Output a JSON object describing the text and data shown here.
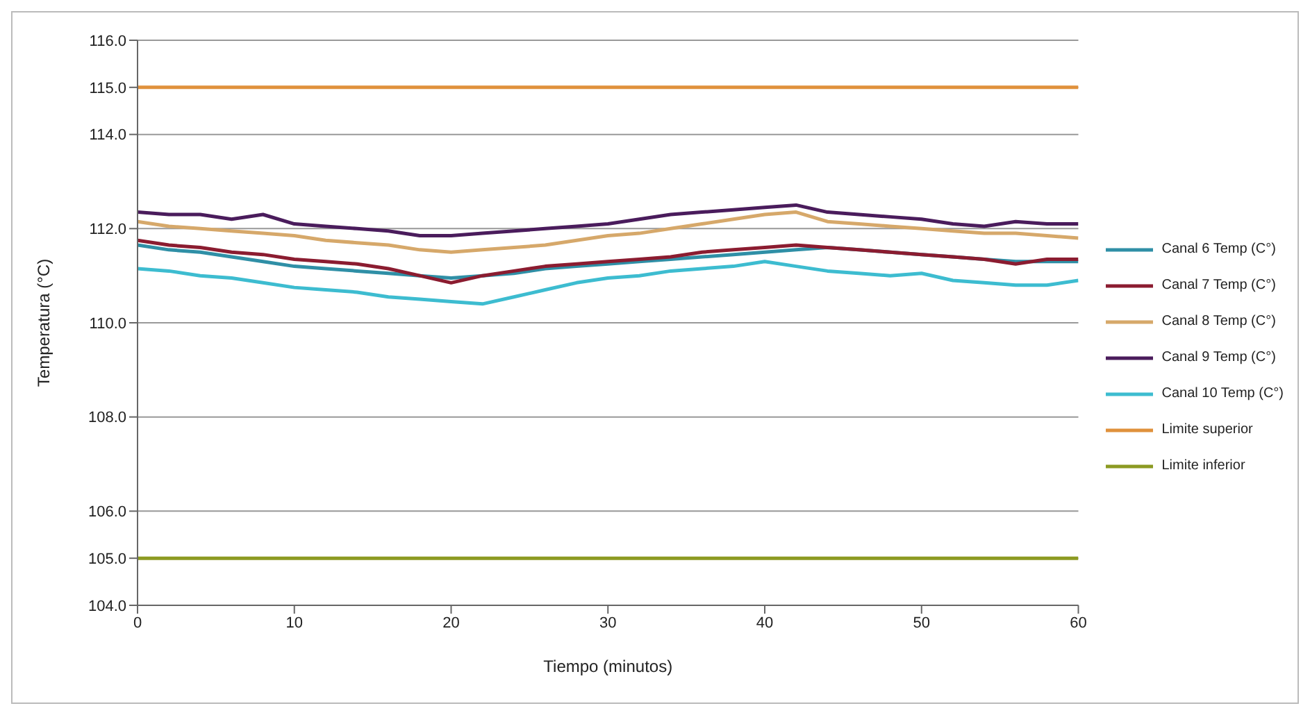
{
  "chart_data": {
    "type": "line",
    "xlabel": "Tiempo (minutos)",
    "ylabel": "Temperatura (°C)",
    "x": [
      0,
      2,
      4,
      6,
      8,
      10,
      12,
      14,
      16,
      18,
      20,
      22,
      24,
      26,
      28,
      30,
      32,
      34,
      36,
      38,
      40,
      42,
      44,
      46,
      48,
      50,
      52,
      54,
      56,
      58,
      60
    ],
    "series": [
      {
        "name": "Canal 6 Temp (C°)",
        "color": "#2f8fa6",
        "values": [
          111.65,
          111.55,
          111.5,
          111.4,
          111.3,
          111.2,
          111.15,
          111.1,
          111.05,
          111.0,
          110.95,
          111.0,
          111.05,
          111.15,
          111.2,
          111.25,
          111.3,
          111.35,
          111.4,
          111.45,
          111.5,
          111.55,
          111.6,
          111.55,
          111.5,
          111.45,
          111.4,
          111.35,
          111.3,
          111.3,
          111.3
        ]
      },
      {
        "name": "Canal 7 Temp (C°)",
        "color": "#8b1c30",
        "values": [
          111.75,
          111.65,
          111.6,
          111.5,
          111.45,
          111.35,
          111.3,
          111.25,
          111.15,
          111.0,
          110.85,
          111.0,
          111.1,
          111.2,
          111.25,
          111.3,
          111.35,
          111.4,
          111.5,
          111.55,
          111.6,
          111.65,
          111.6,
          111.55,
          111.5,
          111.45,
          111.4,
          111.35,
          111.25,
          111.35,
          111.35
        ]
      },
      {
        "name": "Canal 8 Temp (C°)",
        "color": "#d6a86a",
        "values": [
          112.15,
          112.05,
          112.0,
          111.95,
          111.9,
          111.85,
          111.75,
          111.7,
          111.65,
          111.55,
          111.5,
          111.55,
          111.6,
          111.65,
          111.75,
          111.85,
          111.9,
          112.0,
          112.1,
          112.2,
          112.3,
          112.35,
          112.15,
          112.1,
          112.05,
          112.0,
          111.95,
          111.9,
          111.9,
          111.85,
          111.8
        ]
      },
      {
        "name": "Canal 9 Temp (C°)",
        "color": "#4a1c5c",
        "values": [
          112.35,
          112.3,
          112.3,
          112.2,
          112.3,
          112.1,
          112.05,
          112.0,
          111.95,
          111.85,
          111.85,
          111.9,
          111.95,
          112.0,
          112.05,
          112.1,
          112.2,
          112.3,
          112.35,
          112.4,
          112.45,
          112.5,
          112.35,
          112.3,
          112.25,
          112.2,
          112.1,
          112.05,
          112.15,
          112.1,
          112.1
        ]
      },
      {
        "name": "Canal 10 Temp (C°)",
        "color": "#3dbcd0",
        "values": [
          111.15,
          111.1,
          111.0,
          110.95,
          110.85,
          110.75,
          110.7,
          110.65,
          110.55,
          110.5,
          110.45,
          110.4,
          110.55,
          110.7,
          110.85,
          110.95,
          111.0,
          111.1,
          111.15,
          111.2,
          111.3,
          111.2,
          111.1,
          111.05,
          111.0,
          111.05,
          110.9,
          110.85,
          110.8,
          110.8,
          110.9
        ]
      },
      {
        "name": "Limite superior",
        "color": "#e0913c",
        "values": [
          115,
          115,
          115,
          115,
          115,
          115,
          115,
          115,
          115,
          115,
          115,
          115,
          115,
          115,
          115,
          115,
          115,
          115,
          115,
          115,
          115,
          115,
          115,
          115,
          115,
          115,
          115,
          115,
          115,
          115,
          115
        ]
      },
      {
        "name": "Limite inferior",
        "color": "#8c9a22",
        "values": [
          105,
          105,
          105,
          105,
          105,
          105,
          105,
          105,
          105,
          105,
          105,
          105,
          105,
          105,
          105,
          105,
          105,
          105,
          105,
          105,
          105,
          105,
          105,
          105,
          105,
          105,
          105,
          105,
          105,
          105,
          105
        ]
      }
    ],
    "xlim": [
      0,
      60
    ],
    "xticks": [
      0,
      10,
      20,
      30,
      40,
      50,
      60
    ],
    "ylim": [
      104,
      116
    ],
    "yticks": [
      {
        "value": 104,
        "label": "104.0"
      },
      {
        "value": 105,
        "label": "105.0"
      },
      {
        "value": 106,
        "label": "106.0"
      },
      {
        "value": 108,
        "label": "108.0"
      },
      {
        "value": 110,
        "label": "110.0"
      },
      {
        "value": 112,
        "label": "112.0"
      },
      {
        "value": 114,
        "label": "114.0"
      },
      {
        "value": 115,
        "label": "115.0"
      },
      {
        "value": 116,
        "label": "116.0"
      }
    ],
    "grid": "y",
    "legend": "right",
    "marker": "none",
    "line_style": "solid"
  }
}
